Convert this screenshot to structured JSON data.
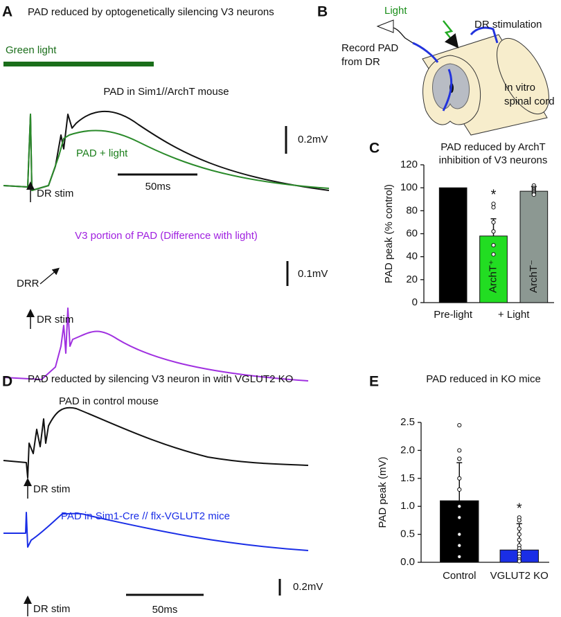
{
  "panel_a": {
    "letter": "A",
    "title": "PAD reduced by optogenetically silencing V3 neurons",
    "light_label": "Green light",
    "trace1_title": "PAD in Sim1//ArchT mouse",
    "trace1_light": "PAD + light",
    "scale1_v": "0.2mV",
    "scale1_t": "50ms",
    "stim1": "DR stim",
    "trace2_title": "V3 portion of PAD (Difference with light)",
    "drr": "DRR",
    "scale2_v": "0.1mV",
    "stim2": "DR stim"
  },
  "panel_b": {
    "letter": "B",
    "light": "Light",
    "stimulation": "DR stimulation",
    "record": [
      "Record PAD",
      "from DR"
    ],
    "cord": [
      "In vitro",
      "spinal cord"
    ]
  },
  "panel_c": {
    "letter": "C"
  },
  "panel_d": {
    "letter": "D",
    "title": "PAD reducted by silencing V3 neuron in with VGLUT2 KO",
    "trace1_title": "PAD in control mouse",
    "stim1": "DR stim",
    "trace2_title": "PAD in Sim1-Cre // flx-VGLUT2 mice",
    "scale_v": "0.2mV",
    "scale_t": "50ms",
    "stim2": "DR stim"
  },
  "panel_e": {
    "letter": "E"
  },
  "chart_data": [
    {
      "type": "bar",
      "title": [
        "PAD reduced by ArchT",
        "inhibition of V3 neurons"
      ],
      "y_label": "PAD peak (% control)",
      "categories": [
        "Pre-light",
        null,
        null
      ],
      "group_label": "+ Light",
      "bar_labels": [
        null,
        "ArchT⁺",
        "ArchT⁻"
      ],
      "values": [
        100,
        58,
        97
      ],
      "errors": [
        null,
        15,
        4
      ],
      "points": [
        [],
        [
          86,
          83,
          70,
          62,
          50,
          42
        ],
        [
          102,
          100,
          99,
          98,
          97,
          96,
          95,
          94
        ]
      ],
      "significance": [
        null,
        "*",
        null
      ],
      "colors": [
        "#000000",
        "#22dd22",
        "#8c9892"
      ],
      "ylim": [
        0,
        120
      ],
      "yticks": [
        0,
        20,
        40,
        60,
        80,
        100,
        120
      ]
    },
    {
      "type": "bar",
      "title": [
        "PAD reduced in KO mice"
      ],
      "y_label": "PAD peak (mV)",
      "categories": [
        "Control",
        "VGLUT2 KO"
      ],
      "values": [
        1.1,
        0.22
      ],
      "errors": [
        0.68,
        0.47
      ],
      "points": [
        [
          2.45,
          2.0,
          1.85,
          1.85,
          1.5,
          1.3,
          1.0,
          0.8,
          0.5,
          0.3,
          0.1
        ],
        [
          0.8,
          0.75,
          0.6,
          0.5,
          0.4,
          0.3,
          0.25,
          0.2,
          0.15,
          0.1,
          0.05,
          0.02
        ]
      ],
      "significance": [
        null,
        "*"
      ],
      "colors": [
        "#000000",
        "#1a2ee6"
      ],
      "ylim": [
        0,
        2.5
      ],
      "yticks": [
        {
          "value": 0,
          "label": "0.0"
        },
        0.5,
        {
          "value": 1,
          "label": "1.0"
        },
        1.5,
        {
          "value": 2,
          "label": "2.0"
        },
        2.5
      ]
    }
  ]
}
